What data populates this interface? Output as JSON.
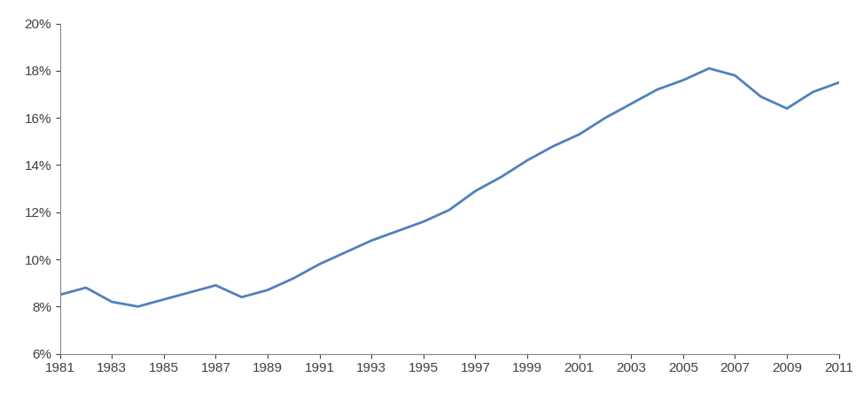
{
  "chart_data": {
    "type": "line",
    "x": [
      1981,
      1982,
      1983,
      1984,
      1985,
      1986,
      1987,
      1988,
      1989,
      1990,
      1991,
      1992,
      1993,
      1994,
      1995,
      1996,
      1997,
      1998,
      1999,
      2000,
      2001,
      2002,
      2003,
      2004,
      2005,
      2006,
      2007,
      2008,
      2009,
      2010,
      2011
    ],
    "values": [
      8.5,
      8.8,
      8.2,
      8.0,
      8.3,
      8.6,
      8.9,
      8.4,
      8.7,
      9.2,
      9.8,
      10.3,
      10.8,
      11.2,
      11.6,
      12.1,
      12.9,
      13.5,
      14.2,
      14.8,
      15.3,
      16.0,
      16.6,
      17.2,
      17.6,
      18.1,
      17.8,
      16.9,
      16.4,
      17.1,
      17.5
    ],
    "color": "#4f81bd",
    "xlim": [
      1981,
      2011
    ],
    "xticks": [
      1981,
      1983,
      1985,
      1987,
      1989,
      1991,
      1993,
      1995,
      1997,
      1999,
      2001,
      2003,
      2005,
      2007,
      2009,
      2011
    ],
    "ylim": [
      6,
      20
    ],
    "yticks": [
      {
        "value": 6,
        "label": "6%"
      },
      {
        "value": 8,
        "label": "8%"
      },
      {
        "value": 10,
        "label": "10%"
      },
      {
        "value": 12,
        "label": "12%"
      },
      {
        "value": 14,
        "label": "14%"
      },
      {
        "value": 16,
        "label": "16%"
      },
      {
        "value": 18,
        "label": "18%"
      },
      {
        "value": 20,
        "label": "20%"
      }
    ],
    "grid": false
  }
}
